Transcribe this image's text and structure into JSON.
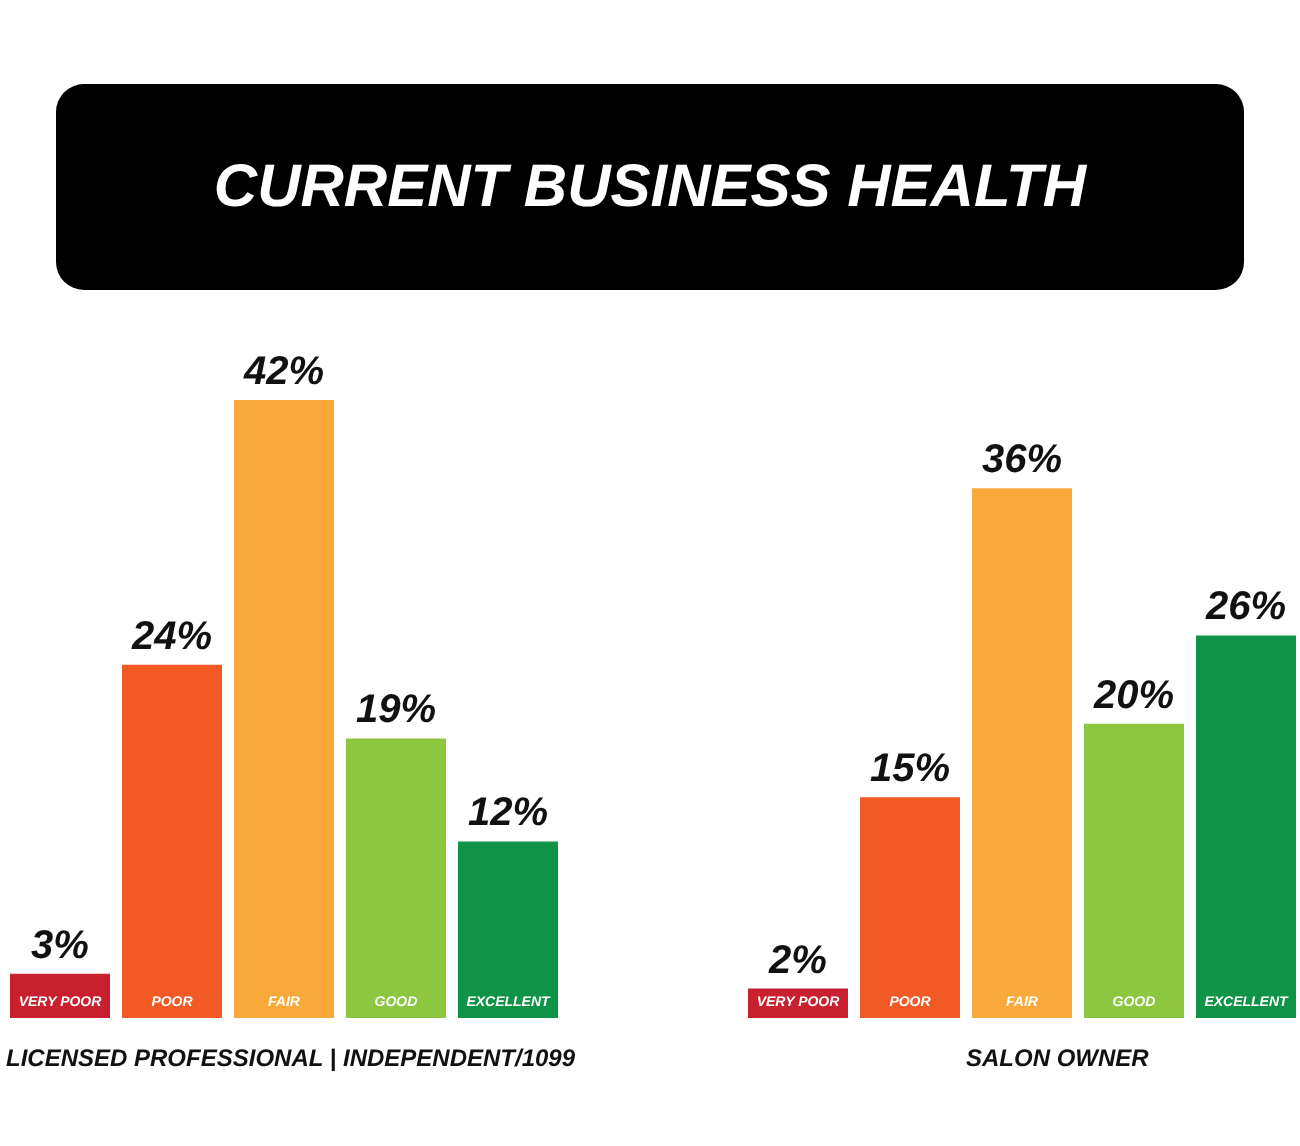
{
  "chart_data": [
    {
      "type": "bar",
      "title": "CURRENT BUSINESS HEALTH",
      "xlabel": "LICENSED PROFESSIONAL | INDEPENDENT/1099",
      "categories": [
        "VERY POOR",
        "POOR",
        "FAIR",
        "GOOD",
        "EXCELLENT"
      ],
      "values": [
        3,
        24,
        42,
        19,
        12
      ],
      "value_labels": [
        "3%",
        "24%",
        "42%",
        "19%",
        "12%"
      ],
      "colors": [
        "#c8202f",
        "#f15a24",
        "#f9a93a",
        "#8dc63f",
        "#0f9447"
      ],
      "relative": false,
      "grid": false,
      "legend": false
    },
    {
      "type": "bar",
      "xlabel": "SALON OWNER",
      "categories": [
        "VERY POOR",
        "POOR",
        "FAIR",
        "GOOD",
        "EXCELLENT"
      ],
      "values": [
        2,
        15,
        36,
        20,
        26
      ],
      "value_labels": [
        "2%",
        "15%",
        "36%",
        "20%",
        "26%"
      ],
      "colors": [
        "#c8202f",
        "#f15a24",
        "#f9a93a",
        "#8dc63f",
        "#0f9447"
      ],
      "relative": false,
      "grid": false,
      "legend": false
    }
  ]
}
